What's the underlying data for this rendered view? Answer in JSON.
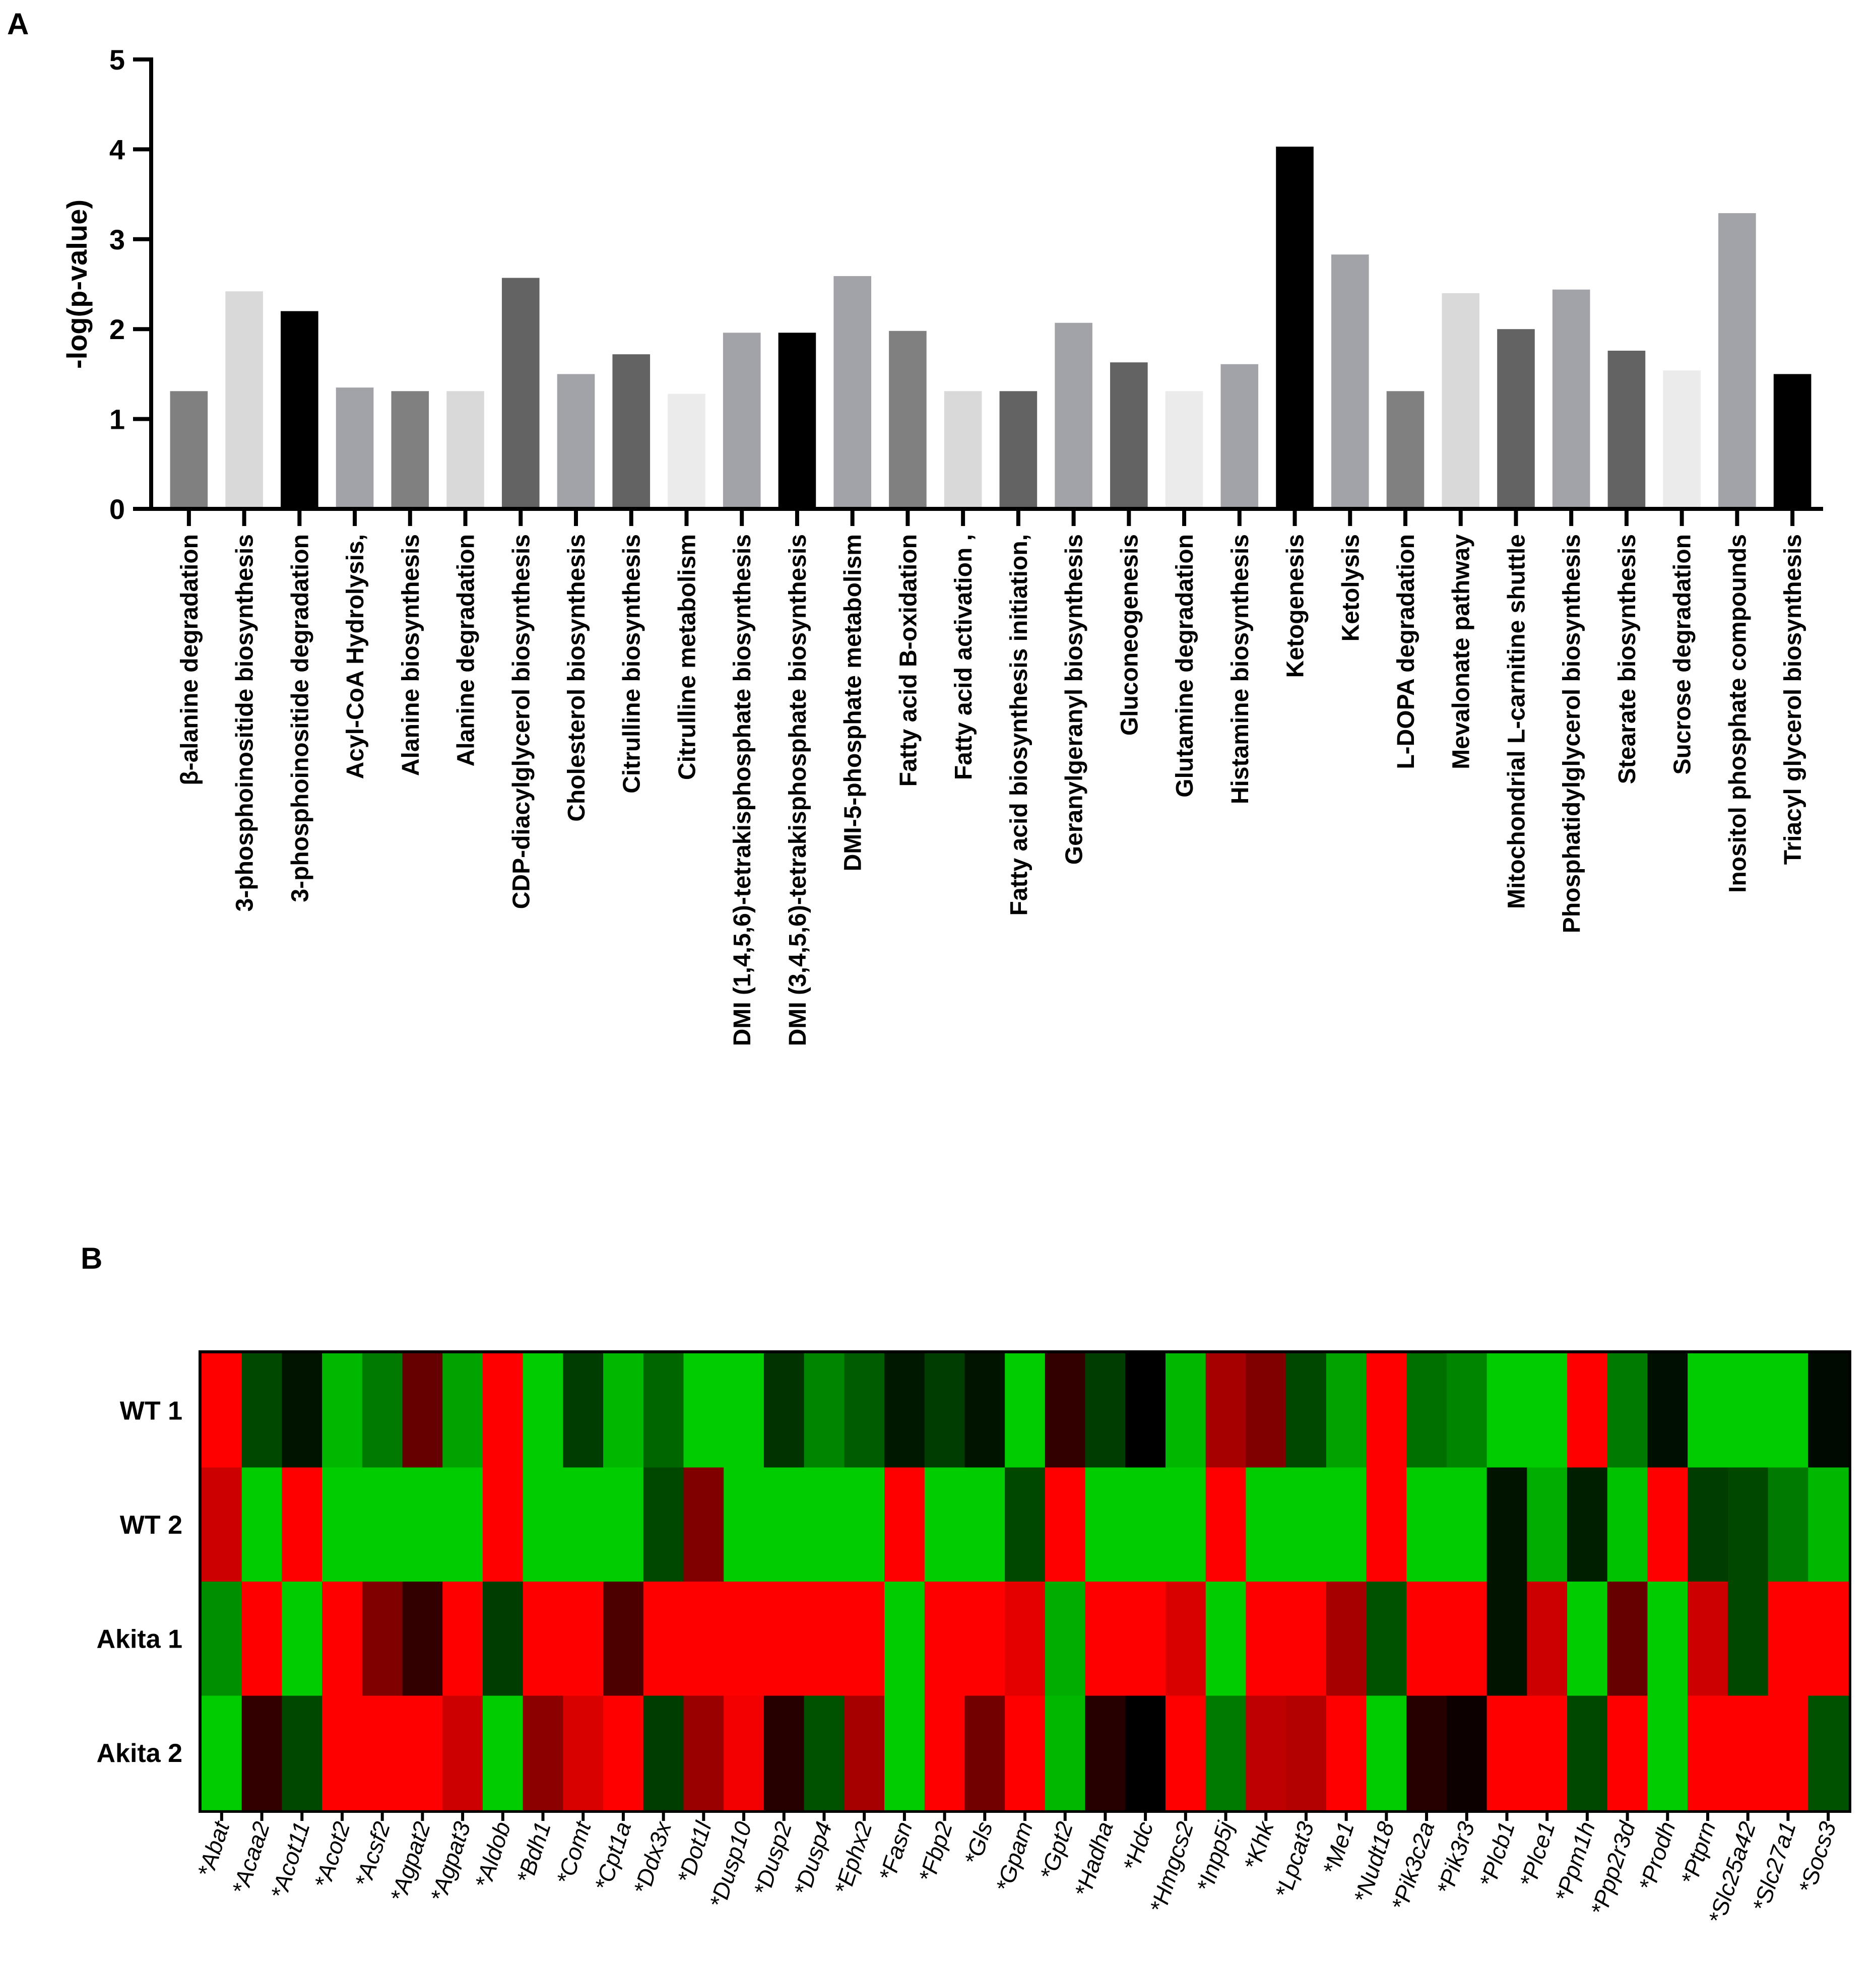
{
  "panel_labels": {
    "a": "A",
    "b": "B"
  },
  "chart_data": [
    {
      "type": "bar",
      "title": "",
      "xlabel": "",
      "ylabel": "-log(p-value)",
      "ylim": [
        0,
        5
      ],
      "yticks": [
        "0",
        "1",
        "2",
        "3",
        "4",
        "5"
      ],
      "categories": [
        "β-alanine degradation",
        "3-phosphoinositide biosynthesis",
        "3-phosphoinositide degradation",
        "Acyl-CoA Hydrolysis,",
        "Alanine biosynthesis",
        "Alanine degradation",
        "CDP-diacylglycerol biosynthesis",
        "Cholesterol biosynthesis",
        "Citrulline biosynthesis",
        "Citrulline metabolism",
        "DMI (1,4,5,6)-tetrakisphosphate biosynthesis",
        "DMI (3,4,5,6)-tetrakisphosphate biosynthesis",
        "DMI-5-phosphate metabolism",
        "Fatty acid B-oxidation",
        "Fatty acid activation ,",
        "Fatty acid biosynthesis initiation,",
        "Geranylgeranyl biosynthesis",
        "Gluconeogenesis",
        "Glutamine degradation",
        "Histamine biosynthesis",
        "Ketogenesis",
        "Ketolysis",
        "L-DOPA degradation",
        "Mevalonate pathway",
        "Mitochondrial L-carnitine shuttle",
        "Phosphatidylglycerol biosynthesis",
        "Stearate biosynthesis",
        "Sucrose degradation",
        "Inositol phosphate compounds",
        "Triacyl glycerol biosynthesis"
      ],
      "values": [
        1.31,
        2.42,
        2.2,
        1.35,
        1.31,
        1.31,
        2.57,
        1.5,
        1.72,
        1.28,
        1.96,
        1.96,
        2.59,
        1.98,
        1.31,
        1.31,
        2.07,
        1.63,
        1.31,
        1.61,
        4.03,
        2.83,
        1.31,
        2.4,
        2.0,
        2.44,
        1.76,
        1.54,
        3.29,
        1.5
      ],
      "colors": [
        "#808080",
        "#d9d9d9",
        "#000000",
        "#a2a2a9",
        "#808080",
        "#d9d9d9",
        "#636363",
        "#a2a2a9",
        "#636363",
        "#ebebeb",
        "#a2a2a9",
        "#000000",
        "#a2a2a9",
        "#808080",
        "#d9d9d9",
        "#636363",
        "#a2a2a9",
        "#636363",
        "#ebebeb",
        "#a2a2a9",
        "#000000",
        "#a2a2a9",
        "#808080",
        "#d9d9d9",
        "#636363",
        "#a2a2a9",
        "#636363",
        "#ebebeb",
        "#a2a2a9",
        "#000000"
      ]
    },
    {
      "type": "heatmap",
      "rows": [
        "WT 1",
        "WT 2",
        "Akita 1",
        "Akita 2"
      ],
      "columns": [
        "*Abat",
        "*Acaa2",
        "*Acot11",
        "*Acot2",
        "*Acsf2",
        "*Agpat2",
        "*Agpat3",
        "*Aldob",
        "*Bdh1",
        "*Comt",
        "*Cpt1a",
        "*Ddx3x",
        "*Dot1l",
        "*Dusp10",
        "*Dusp2",
        "*Dusp4",
        "*Ephx2",
        "*Fasn",
        "*Fbp2",
        "*Gls",
        "*Gpam",
        "*Gpt2",
        "*Hadha",
        "*Hdc",
        "*Hmgcs2",
        "*Inpp5j",
        "*Khk",
        "*Lpcat3",
        "*Me1",
        "*Nudt18",
        "*Pik3c2a",
        "*Pik3r3",
        "*Plcb1",
        "*Plce1",
        "*Ppm1h",
        "*Ppp2r3d",
        "*Prodh",
        "*Ptprn",
        "*Slc25a42",
        "*Slc27a1",
        "*Socs3"
      ],
      "colorscale": {
        "low": "#00cc00",
        "mid": "#000000",
        "high": "#ff0000",
        "range": [
          -1,
          1
        ]
      },
      "values": [
        [
          1,
          -0.35,
          -0.1,
          -0.9,
          -0.6,
          0.4,
          -0.8,
          1,
          -1,
          -0.3,
          -0.9,
          -0.5,
          -1,
          -1,
          -0.25,
          -0.65,
          -0.45,
          -0.12,
          -0.3,
          -0.1,
          -1,
          0.2,
          -0.3,
          0,
          -0.9,
          0.65,
          0.5,
          -0.35,
          -0.8,
          1,
          -0.55,
          -0.65,
          -1,
          -1,
          1,
          -0.6,
          -0.08,
          -1,
          -1,
          -1,
          -0.05
        ],
        [
          0.8,
          -1,
          1,
          -1,
          -1,
          -1,
          -1,
          1,
          -1,
          -1,
          -1,
          -0.35,
          0.5,
          -1,
          -1,
          -1,
          -1,
          1,
          -1,
          -1,
          -0.35,
          1,
          -1,
          -1,
          -1,
          1,
          -1,
          -1,
          -1,
          1,
          -1,
          -1,
          -0.1,
          -0.85,
          -0.15,
          -0.95,
          1,
          -0.3,
          -0.35,
          -0.6,
          -0.9
        ],
        [
          -0.7,
          1,
          -1,
          1,
          0.5,
          0.2,
          1,
          -0.3,
          1,
          1,
          0.3,
          1,
          1,
          1,
          1,
          1,
          1,
          -1,
          1,
          1,
          0.9,
          -0.85,
          1,
          1,
          0.85,
          -1,
          1,
          1,
          0.65,
          -0.4,
          1,
          1,
          -0.1,
          0.8,
          -1,
          0.4,
          -1,
          0.8,
          -0.35,
          1,
          1
        ],
        [
          -1,
          0.2,
          -0.35,
          1,
          1,
          1,
          0.8,
          -1,
          0.55,
          0.85,
          1,
          -0.3,
          0.6,
          0.95,
          0.15,
          -0.4,
          0.65,
          -1,
          1,
          0.45,
          1,
          -0.9,
          0.15,
          0,
          1,
          -0.6,
          0.75,
          0.7,
          1,
          -1,
          0.15,
          0.05,
          1,
          1,
          -0.35,
          1,
          -1,
          1,
          1,
          1,
          -0.4
        ]
      ]
    }
  ]
}
